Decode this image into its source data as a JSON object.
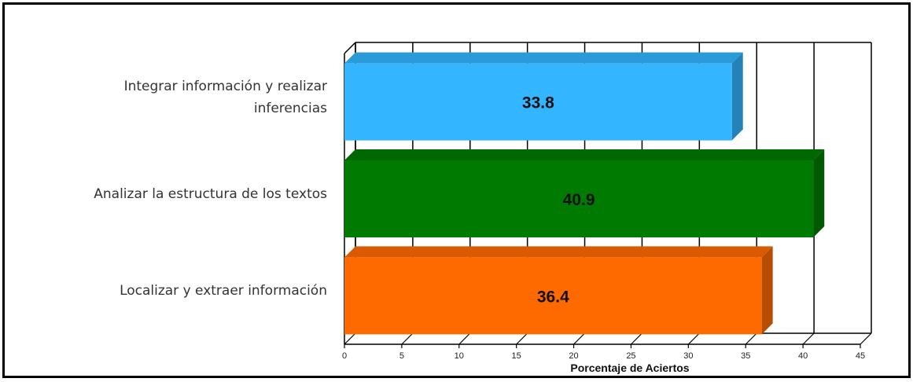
{
  "chart_data": {
    "type": "bar",
    "orientation": "horizontal",
    "three_d": true,
    "categories": [
      "Integrar información y realizar inferencias",
      "Analizar la estructura de los textos",
      "Localizar y extraer información"
    ],
    "category_lines": [
      [
        "Integrar información y realizar",
        "inferencias"
      ],
      [
        "Analizar la estructura de los textos"
      ],
      [
        "Localizar y extraer información"
      ]
    ],
    "values": [
      33.8,
      40.9,
      36.4
    ],
    "value_labels": [
      "33.8",
      "40.9",
      "36.4"
    ],
    "colors": [
      "#33b5ff",
      "#007a00",
      "#ff6a00"
    ],
    "xlabel": "Porcentaje de Aciertos",
    "ylabel": "",
    "xlim": [
      0,
      45
    ],
    "ticks": [
      0,
      5,
      10,
      15,
      20,
      25,
      30,
      35,
      40,
      45
    ],
    "tick_labels": [
      "0",
      "5",
      "10",
      "15",
      "20",
      "25",
      "30",
      "35",
      "40",
      "45"
    ],
    "grid": true,
    "legend": "none"
  }
}
